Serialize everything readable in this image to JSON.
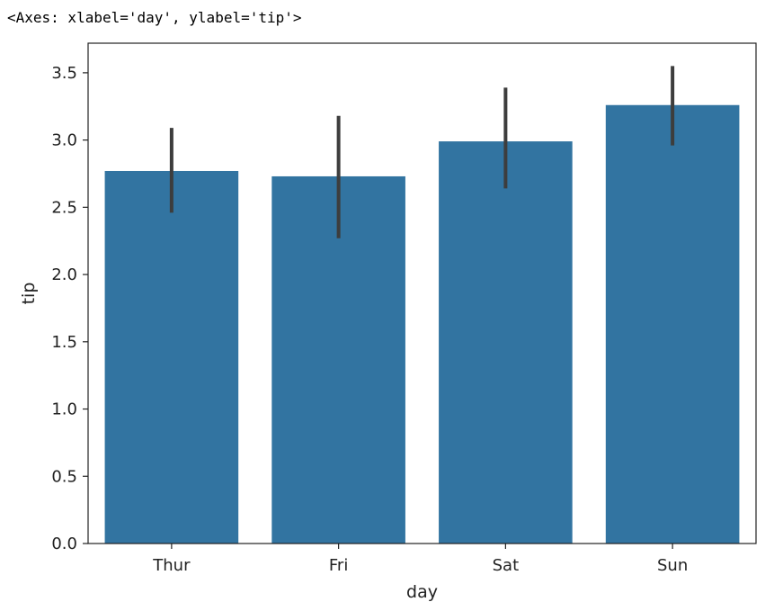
{
  "output_text": "<Axes: xlabel='day', ylabel='tip'>",
  "chart_data": {
    "type": "bar",
    "categories": [
      "Thur",
      "Fri",
      "Sat",
      "Sun"
    ],
    "values": [
      2.77,
      2.73,
      2.99,
      3.26
    ],
    "error_bars": [
      {
        "low": 2.46,
        "high": 3.09
      },
      {
        "low": 2.27,
        "high": 3.18
      },
      {
        "low": 2.64,
        "high": 3.39
      },
      {
        "low": 2.96,
        "high": 3.55
      }
    ],
    "xlabel": "day",
    "ylabel": "tip",
    "ylim": [
      0,
      3.72
    ],
    "yticks": [
      0.0,
      0.5,
      1.0,
      1.5,
      2.0,
      2.5,
      3.0,
      3.5
    ],
    "ytick_labels": [
      "0.0",
      "0.5",
      "1.0",
      "1.5",
      "2.0",
      "2.5",
      "3.0",
      "3.5"
    ],
    "bar_color": "#3274a1",
    "errorbar_color": "#3d3d3d",
    "grid": false,
    "legend": "none"
  }
}
